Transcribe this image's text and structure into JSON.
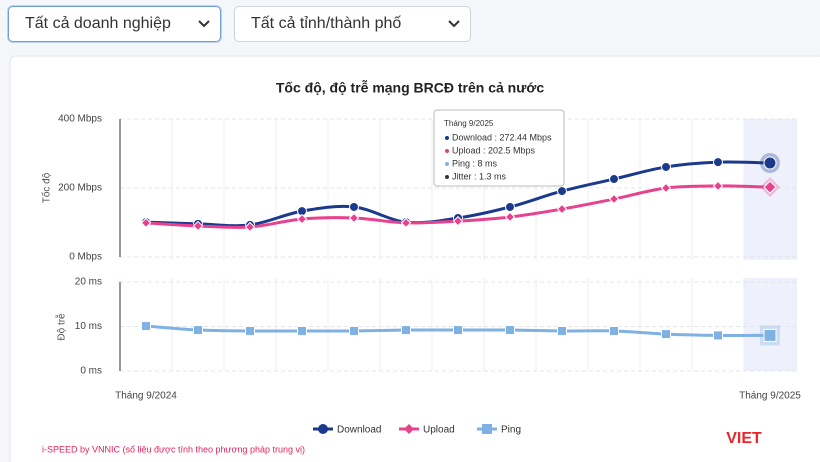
{
  "filters": [
    "Tất cả doanh nghiệp",
    "Tất cả tỉnh/thành phố"
  ],
  "chart_data": [
    {
      "type": "line",
      "title": "Tốc độ, độ trễ mạng BRCĐ trên cả nước",
      "y_label": "Tốc độ",
      "categories": [
        "Tháng 9/2024",
        null,
        null,
        null,
        null,
        null,
        null,
        null,
        null,
        null,
        null,
        null,
        "Tháng 9/2025"
      ],
      "ylim": [
        0,
        400
      ],
      "yticks": [
        {
          "value": 0,
          "label": "0 Mbps"
        },
        {
          "value": 200,
          "label": "200 Mbps"
        },
        {
          "value": 400,
          "label": "400 Mbps"
        }
      ],
      "series": [
        {
          "name": "Download",
          "color": "#1b3a8c",
          "values": [
            101,
            96,
            93,
            133,
            145,
            101,
            113,
            145,
            191,
            226,
            261,
            275,
            272.44
          ]
        },
        {
          "name": "Upload",
          "color": "#e8418e",
          "values": [
            99,
            90,
            87,
            110,
            113,
            99,
            104,
            116,
            139,
            168,
            200,
            206,
            202.5
          ]
        }
      ]
    },
    {
      "type": "line",
      "y_label": "Độ trễ",
      "ylim": [
        0,
        20
      ],
      "yticks": [
        {
          "value": 0,
          "label": "0 ms"
        },
        {
          "value": 10,
          "label": "10 ms"
        },
        {
          "value": 20,
          "label": "20 ms"
        }
      ],
      "series": [
        {
          "name": "Ping",
          "color": "#7fb2e2",
          "values": [
            10.1,
            9.2,
            9,
            9,
            9,
            9.2,
            9.2,
            9.2,
            9,
            9,
            8.3,
            8,
            8
          ]
        }
      ]
    }
  ],
  "tooltip": {
    "title": "Tháng 9/2025",
    "rows": [
      "Download : 272.44 Mbps",
      "Upload : 202.5 Mbps",
      "Ping : 8 ms",
      "Jitter : 1.3 ms"
    ]
  },
  "footer": "i-SPEED by VNNIC (số liệu được tính theo phương pháp trung vị)",
  "logo": "VIET"
}
